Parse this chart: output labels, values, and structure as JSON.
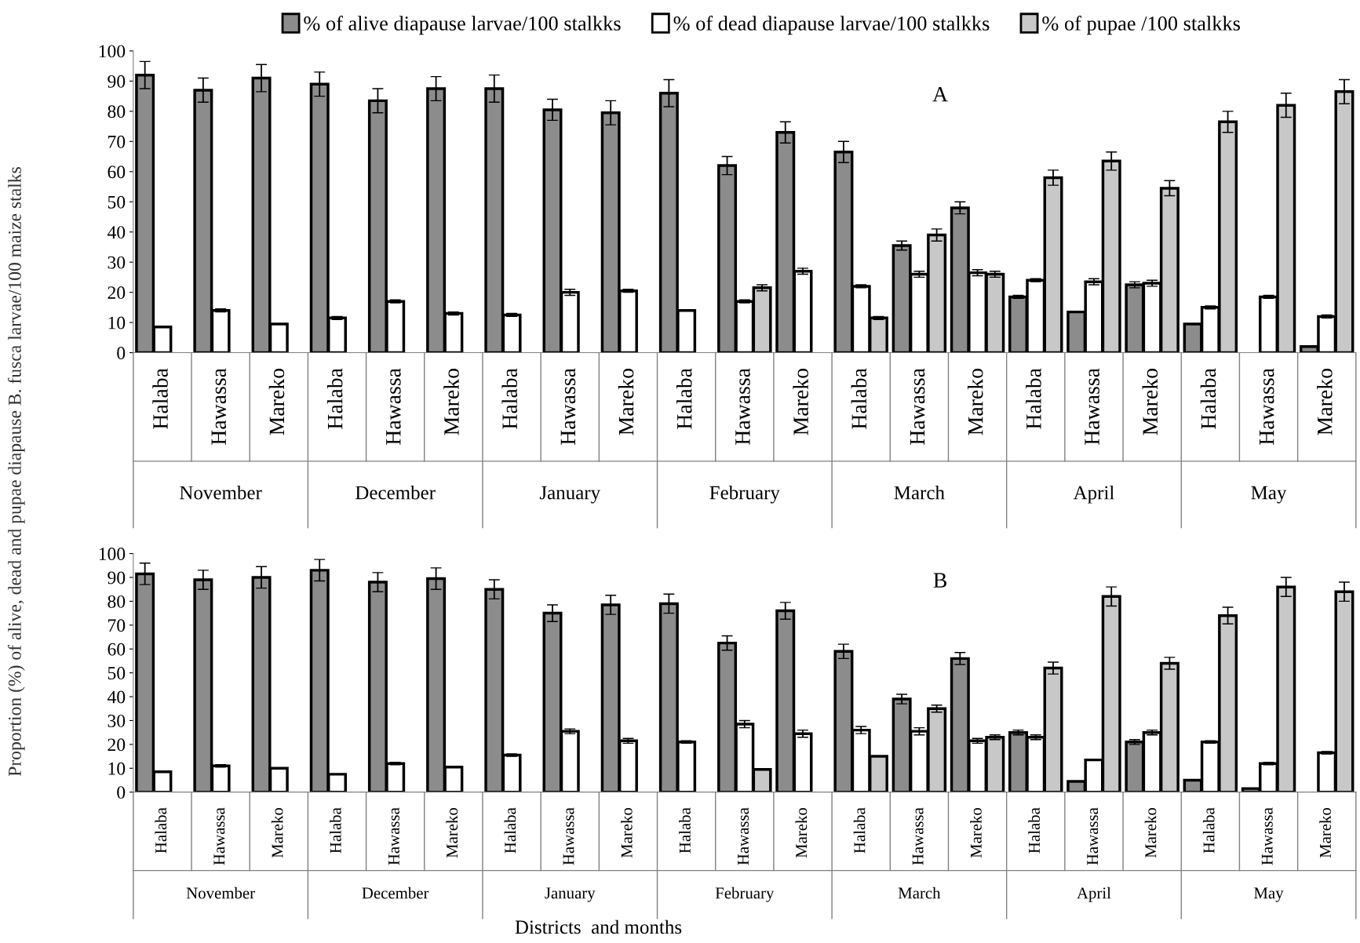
{
  "chart_data": [
    {
      "type": "bar",
      "ylabel": "Proportion (%) of alive, dead and pupae diapause B. fusca larvae/100 maize stalks",
      "legend": "top",
      "categories": [
        "Halaba",
        "Hawassa",
        "Mareko",
        "Halaba",
        "Hawassa",
        "Mareko",
        "Halaba",
        "Hawassa",
        "Mareko",
        "Halaba",
        "Hawassa",
        "Mareko",
        "Halaba",
        "Hawassa",
        "Mareko",
        "Halaba",
        "Hawassa",
        "Mareko",
        "Halaba",
        "Hawassa",
        "Mareko"
      ],
      "annotations": [
        "November",
        "December",
        "January",
        "February",
        "March",
        "April",
        "May",
        "A"
      ],
      "ylim": [
        0,
        100
      ],
      "yticks": [
        0,
        10,
        20,
        30,
        40,
        50,
        60,
        70,
        80,
        90,
        100
      ],
      "grid": false,
      "series": [
        {
          "name": "% of alive diapause larvae/100 stalkks",
          "color": "#8c8c8c",
          "values": [
            92,
            87,
            91,
            89,
            83.5,
            87.5,
            87.5,
            80.5,
            79.5,
            86,
            62,
            73,
            66.5,
            35.5,
            48,
            18.5,
            13.5,
            22.5,
            9.5,
            null,
            2
          ],
          "errors": [
            4.5,
            4,
            4.5,
            4,
            4,
            4,
            4.5,
            3.5,
            4,
            4.5,
            3,
            3.5,
            3.5,
            1.5,
            2,
            0.5,
            null,
            1,
            null,
            null,
            null
          ]
        },
        {
          "name": "% of dead diapause larvae/100 stalkks",
          "color": "#ffffff",
          "values": [
            8.5,
            14,
            9.5,
            11.5,
            17,
            13,
            12.5,
            20,
            20.5,
            14,
            17,
            27,
            22,
            26,
            26.5,
            24,
            23.5,
            23,
            15,
            18.5,
            12
          ],
          "errors": [
            null,
            0.5,
            null,
            0.5,
            0.5,
            0.5,
            0.5,
            1,
            0.5,
            null,
            0.5,
            1,
            0.5,
            1,
            1,
            0.5,
            1,
            1,
            0.5,
            0.5,
            0.5
          ]
        },
        {
          "name": "% of pupae /100 stalkks",
          "color": "#c8c8c8",
          "values": [
            null,
            null,
            null,
            null,
            null,
            null,
            null,
            null,
            null,
            null,
            21.5,
            null,
            11.5,
            39,
            26,
            58,
            63.5,
            54.5,
            76.5,
            82,
            86.5
          ],
          "errors": [
            null,
            null,
            null,
            null,
            null,
            null,
            null,
            null,
            null,
            null,
            1,
            null,
            0.5,
            2,
            1,
            2.5,
            3,
            2.5,
            3.5,
            4,
            4
          ]
        }
      ]
    },
    {
      "type": "bar",
      "xlabel": "Districts  and months",
      "categories": [
        "Halaba",
        "Hawassa",
        "Mareko",
        "Halaba",
        "Hawassa",
        "Mareko",
        "Halaba",
        "Hawassa",
        "Mareko",
        "Halaba",
        "Hawassa",
        "Mareko",
        "Halaba",
        "Hawassa",
        "Mareko",
        "Halaba",
        "Hawassa",
        "Mareko",
        "Halaba",
        "Hawassa",
        "Mareko"
      ],
      "annotations": [
        "November",
        "December",
        "January",
        "February",
        "March",
        "April",
        "May",
        "B"
      ],
      "ylim": [
        0,
        100
      ],
      "yticks": [
        0,
        10,
        20,
        30,
        40,
        50,
        60,
        70,
        80,
        90,
        100
      ],
      "grid": false,
      "series": [
        {
          "color": "#8c8c8c",
          "values": [
            91.5,
            89,
            90,
            93,
            88,
            89.5,
            85,
            75,
            78.5,
            79,
            62.5,
            76,
            59,
            39,
            56,
            25,
            4.5,
            21,
            5,
            1.5,
            null
          ],
          "errors": [
            4.5,
            4,
            4.5,
            4.5,
            4,
            4.5,
            4,
            3.5,
            4,
            4,
            3,
            3.5,
            3,
            2,
            2.5,
            1,
            null,
            1,
            null,
            null,
            null
          ]
        },
        {
          "color": "#ffffff",
          "values": [
            8.5,
            11,
            10,
            7.5,
            12,
            10.5,
            15.5,
            25.5,
            21.5,
            21,
            28.5,
            24.5,
            26,
            25.5,
            21.5,
            23,
            13.5,
            25,
            21,
            12,
            16.5
          ],
          "errors": [
            null,
            0.5,
            null,
            null,
            0.5,
            null,
            0.5,
            1,
            1,
            0.5,
            1.5,
            1.5,
            1.5,
            1.5,
            1,
            1,
            null,
            1,
            0.5,
            0.5,
            0.5
          ]
        },
        {
          "color": "#c8c8c8",
          "values": [
            null,
            null,
            null,
            null,
            null,
            null,
            null,
            null,
            null,
            null,
            9.5,
            null,
            15,
            35,
            23,
            52,
            82,
            54,
            74,
            86,
            84
          ],
          "errors": [
            null,
            null,
            null,
            null,
            null,
            null,
            null,
            null,
            null,
            null,
            null,
            null,
            null,
            1.5,
            1,
            2.5,
            4,
            2.5,
            3.5,
            4,
            4
          ]
        }
      ]
    }
  ]
}
